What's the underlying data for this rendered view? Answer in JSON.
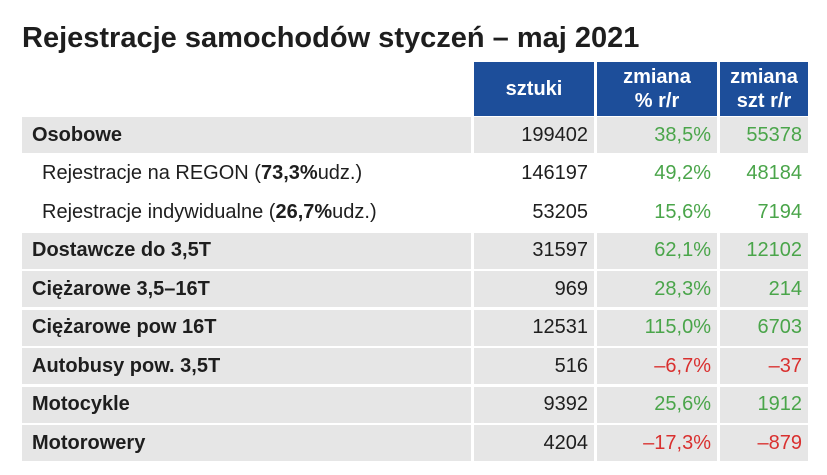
{
  "chart_data": {
    "type": "table",
    "title": "Rejestracje samochodów styczeń – maj 2021",
    "columns": [
      {
        "label_line1": "sztuki",
        "label_line2": ""
      },
      {
        "label_line1": "zmiana",
        "label_line2": "% r/r"
      },
      {
        "label_line1": "zmiana",
        "label_line2": "szt r/r"
      }
    ],
    "rows": [
      {
        "label": "Osobowe",
        "sztuki": "199402",
        "zmiana_proc": "38,5%",
        "zmiana_szt": "55378",
        "sign": "pos"
      },
      {
        "label_pre": "Rejestracje na REGON (",
        "label_bold": "73,3%",
        "label_post": " udz.)",
        "sztuki": "146197",
        "zmiana_proc": "49,2%",
        "zmiana_szt": "48184",
        "sign": "pos"
      },
      {
        "label_pre": "Rejestracje indywidualne (",
        "label_bold": "26,7%",
        "label_post": " udz.)",
        "sztuki": "53205",
        "zmiana_proc": "15,6%",
        "zmiana_szt": "7194",
        "sign": "pos"
      },
      {
        "label": "Dostawcze do 3,5T",
        "sztuki": "31597",
        "zmiana_proc": "62,1%",
        "zmiana_szt": "12102",
        "sign": "pos"
      },
      {
        "label": "Ciężarowe 3,5–16T",
        "sztuki": "969",
        "zmiana_proc": "28,3%",
        "zmiana_szt": "214",
        "sign": "pos"
      },
      {
        "label": "Ciężarowe pow 16T",
        "sztuki": "12531",
        "zmiana_proc": "115,0%",
        "zmiana_szt": "6703",
        "sign": "pos"
      },
      {
        "label": "Autobusy pow. 3,5T",
        "sztuki": "516",
        "zmiana_proc": "–6,7%",
        "zmiana_szt": "–37",
        "sign": "neg"
      },
      {
        "label": "Motocykle",
        "sztuki": "9392",
        "zmiana_proc": "25,6%",
        "zmiana_szt": "1912",
        "sign": "pos"
      },
      {
        "label": "Motorowery",
        "sztuki": "4204",
        "zmiana_proc": "–17,3%",
        "zmiana_szt": "–879",
        "sign": "neg"
      }
    ]
  },
  "colors": {
    "header_bg": "#1d4e9a",
    "positive": "#4aa54a",
    "negative": "#d9302f",
    "row_shade": "#e6e6e6"
  }
}
